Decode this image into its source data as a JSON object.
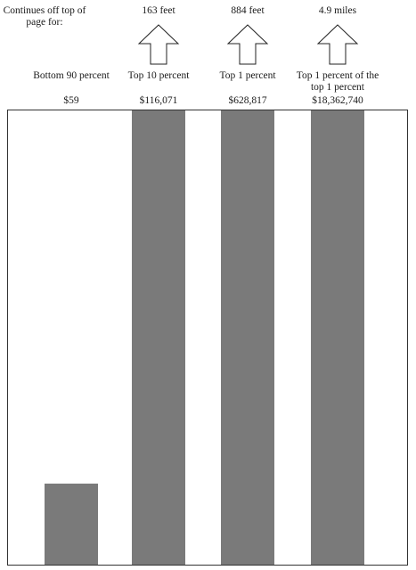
{
  "note": "Continues off top of page for:",
  "chart_data": {
    "type": "bar",
    "categories": [
      "Bottom 90 percent",
      "Top 10 percent",
      "Top 1 percent",
      "Top 1 percent of the top 1 percent"
    ],
    "value_labels": [
      "$59",
      "$116,071",
      "$628,817",
      "$18,362,740"
    ],
    "values": [
      59,
      116071,
      628817,
      18362740
    ],
    "off_page": [
      "",
      "163 feet",
      "884 feet",
      "4.9 miles"
    ],
    "ylim": [
      0,
      332
    ],
    "bar_color": "#7a7a7a",
    "title": "",
    "xlabel": "",
    "ylabel": ""
  }
}
